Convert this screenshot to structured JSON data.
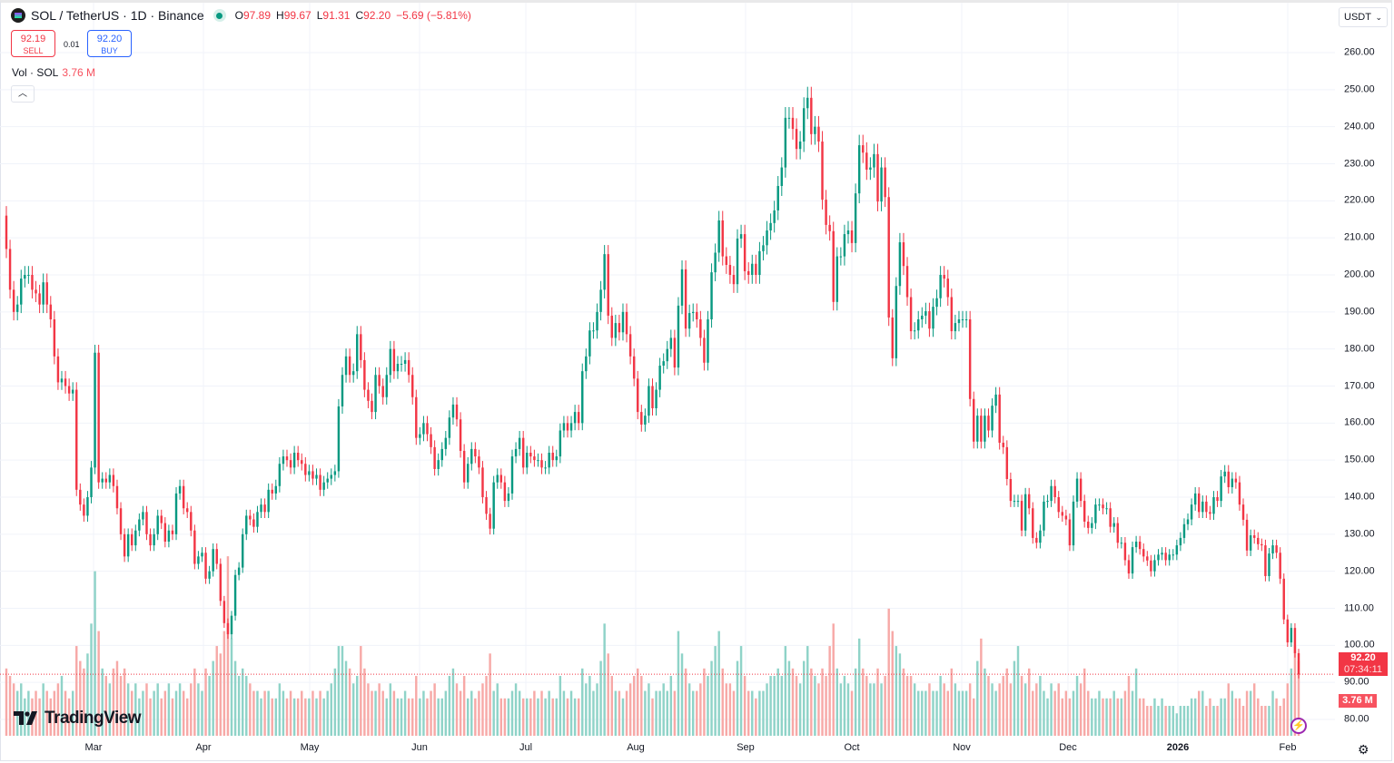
{
  "header": {
    "symbol": "SOL / TetherUS · 1D · Binance",
    "o_label": "O",
    "o": "97.89",
    "h_label": "H",
    "h": "99.67",
    "l_label": "L",
    "l": "91.31",
    "c_label": "C",
    "c": "92.20",
    "change": "−5.69 (−5.81%)"
  },
  "trade": {
    "sell_price": "92.19",
    "sell_label": "SELL",
    "spread": "0.01",
    "buy_price": "92.20",
    "buy_label": "BUY"
  },
  "volume_legend": {
    "label": "Vol · SOL",
    "value": "3.76 M"
  },
  "currency_select": "USDT",
  "price_tag": {
    "price": "92.20",
    "countdown": "07:34:11",
    "volume": "3.76 M"
  },
  "brand": "TradingView",
  "colors": {
    "up": "#089981",
    "down": "#f23645",
    "up_volume": "#8fd3c8",
    "down_volume": "#f7a9a7",
    "accent": "#2962ff"
  },
  "chart_data": {
    "type": "candlestick",
    "timeframe": "1D",
    "first_open": 216,
    "y_ticks": [
      "80.00",
      "90.00",
      "100.00",
      "110.00",
      "120.00",
      "130.00",
      "140.00",
      "150.00",
      "160.00",
      "170.00",
      "180.00",
      "190.00",
      "200.00",
      "210.00",
      "220.00",
      "230.00",
      "240.00",
      "250.00",
      "260.00"
    ],
    "ylim": [
      80,
      260
    ],
    "x_ticks": [
      "Mar",
      "Apr",
      "May",
      "Jun",
      "Jul",
      "Aug",
      "Sep",
      "Oct",
      "Nov",
      "Dec",
      "2026",
      "Feb"
    ],
    "grid": true,
    "last_price": 92.2,
    "close": [
      207,
      196,
      190,
      192,
      199,
      200,
      200,
      196,
      195,
      192,
      198,
      192,
      188,
      178,
      171,
      172,
      170,
      168,
      169,
      142,
      138,
      135,
      140,
      148,
      179,
      144,
      145,
      144,
      146,
      143,
      137,
      130,
      124,
      130,
      127,
      131,
      134,
      136,
      130,
      127,
      130,
      135,
      133,
      128,
      131,
      130,
      141,
      143,
      137,
      136,
      131,
      122,
      124,
      125,
      118,
      120,
      126,
      122,
      112,
      106,
      103,
      108,
      119,
      121,
      130,
      135,
      134,
      132,
      136,
      138,
      136,
      142,
      141,
      143,
      149,
      151,
      150,
      148,
      152,
      150,
      149,
      146,
      147,
      145,
      146,
      142,
      144,
      145,
      146,
      147,
      164.5,
      173,
      178,
      173,
      174,
      184,
      177,
      169,
      166,
      163,
      173,
      170,
      167,
      173,
      180,
      174,
      176,
      176,
      177,
      173,
      167,
      156,
      157,
      160,
      157,
      153.5,
      147.6,
      150,
      153,
      156,
      161.5,
      165,
      161,
      152.5,
      144,
      149,
      153,
      151,
      148,
      140,
      135.5,
      131.5,
      144,
      146,
      144,
      139,
      141,
      151,
      153,
      156,
      148,
      152,
      151,
      150,
      150,
      148,
      148,
      152,
      150,
      151,
      158,
      160,
      158,
      160,
      163,
      160,
      174,
      178,
      185,
      185,
      190,
      196,
      205.6,
      189,
      183,
      187,
      184.5,
      190,
      184,
      178,
      172,
      163,
      159.6,
      162,
      170,
      164,
      169,
      175.5,
      176.7,
      180,
      183,
      175,
      191.7,
      201.5,
      185.5,
      189.7,
      190,
      188,
      183,
      176.3,
      188,
      200.7,
      206,
      214.7,
      205,
      202.7,
      200,
      197.5,
      209.8,
      211,
      201,
      200,
      203,
      200,
      206.4,
      208,
      212,
      214,
      217.4,
      224,
      229,
      242.4,
      242.4,
      239.4,
      234,
      236,
      245,
      247.8,
      238,
      240,
      236,
      220.3,
      213.5,
      211.8,
      192.7,
      205,
      205,
      211,
      212,
      208.6,
      222,
      235,
      233,
      228.4,
      229,
      232.6,
      219.8,
      229,
      221,
      188.5,
      177.5,
      197,
      208.8,
      202.4,
      194,
      184.8,
      185,
      188,
      189,
      190.2,
      185.5,
      191.4,
      193.7,
      200,
      199,
      194,
      184.8,
      187,
      188,
      188,
      188,
      166.5,
      155,
      162,
      155,
      162,
      158,
      164.7,
      167.7,
      154.7,
      153.5,
      144.9,
      139,
      139,
      139,
      131,
      140.8,
      137,
      129,
      127.7,
      131,
      138.8,
      139,
      143,
      140,
      136,
      135,
      134,
      127,
      138.8,
      145,
      139,
      133.4,
      131.7,
      133,
      138,
      138,
      137,
      137,
      132,
      133,
      127.7,
      127.7,
      123,
      119.4,
      126.5,
      128,
      126,
      124,
      122.9,
      120,
      123,
      124.5,
      125,
      123,
      124.5,
      124.5,
      127,
      129,
      132.7,
      134,
      138,
      141,
      136,
      138.8,
      136,
      135.5,
      140,
      139,
      145.6,
      146.9,
      142.7,
      145,
      144,
      138,
      133.9,
      125.6,
      129.7,
      129,
      127.3,
      127,
      118.7,
      124.8,
      127,
      125,
      118,
      107,
      100.8,
      104.7,
      97.89,
      92.2
    ],
    "volume_millions": [
      9,
      8,
      7,
      6,
      7,
      5,
      6,
      5,
      6,
      5,
      7,
      6,
      5,
      6,
      7,
      8,
      6,
      5,
      6,
      12,
      10,
      9,
      11,
      15,
      22,
      14,
      9,
      8,
      7,
      9,
      10,
      8,
      9,
      7,
      6,
      7,
      5,
      6,
      7,
      5,
      6,
      7,
      5,
      6,
      7,
      5,
      6,
      7,
      6,
      5,
      7,
      9,
      7,
      6,
      9,
      8,
      10,
      12,
      11,
      14,
      24,
      13,
      10,
      8,
      9,
      8,
      7,
      6,
      6,
      5,
      6,
      6,
      5,
      5,
      7,
      6,
      5,
      6,
      5,
      5,
      6,
      5,
      5,
      6,
      5,
      6,
      5,
      6,
      7,
      9,
      12,
      12,
      10,
      9,
      7,
      8,
      12,
      9,
      7,
      6,
      6,
      7,
      6,
      5,
      7,
      6,
      5,
      5,
      6,
      5,
      5,
      8,
      5,
      6,
      5,
      6,
      7,
      5,
      5,
      6,
      8,
      9,
      7,
      6,
      8,
      5,
      6,
      5,
      6,
      7,
      8,
      11,
      6,
      7,
      5,
      5,
      5,
      6,
      7,
      6,
      5,
      5,
      5,
      6,
      5,
      6,
      5,
      6,
      5,
      5,
      8,
      6,
      5,
      6,
      5,
      5,
      9,
      7,
      8,
      6,
      7,
      10,
      15,
      11,
      8,
      6,
      6,
      5,
      6,
      7,
      8,
      9,
      8,
      6,
      7,
      5,
      6,
      6,
      7,
      6,
      8,
      6,
      14,
      11,
      9,
      7,
      6,
      6,
      7,
      9,
      8,
      10,
      12,
      14,
      9,
      7,
      7,
      6,
      10,
      12,
      8,
      6,
      6,
      5,
      6,
      6,
      7,
      8,
      8,
      9,
      8,
      12,
      10,
      9,
      8,
      7,
      10,
      12,
      9,
      8,
      7,
      9,
      8,
      12,
      15,
      9,
      7,
      8,
      7,
      6,
      9,
      13,
      9,
      8,
      7,
      7,
      9,
      7,
      8,
      17,
      14,
      12,
      11,
      9,
      8,
      8,
      7,
      6,
      6,
      6,
      7,
      6,
      6,
      8,
      7,
      6,
      9,
      7,
      6,
      6,
      6,
      7,
      5,
      10,
      13,
      9,
      8,
      7,
      6,
      7,
      8,
      9,
      7,
      10,
      12,
      8,
      7,
      9,
      6,
      7,
      8,
      6,
      5,
      7,
      6,
      7,
      5,
      6,
      5,
      6,
      8,
      7,
      9,
      6,
      5,
      5,
      6,
      5,
      5,
      5,
      6,
      5,
      5,
      6,
      8,
      6,
      9,
      5,
      5,
      4,
      4,
      5,
      4,
      5,
      4,
      4,
      4,
      3,
      4,
      4,
      4,
      5,
      5,
      6,
      6,
      4,
      5,
      4,
      4,
      5,
      5,
      7,
      6,
      5,
      5,
      4,
      6,
      6,
      7,
      5,
      4,
      4,
      4,
      6,
      5,
      4,
      5,
      7,
      9,
      12,
      10,
      8,
      9,
      3.76
    ]
  }
}
